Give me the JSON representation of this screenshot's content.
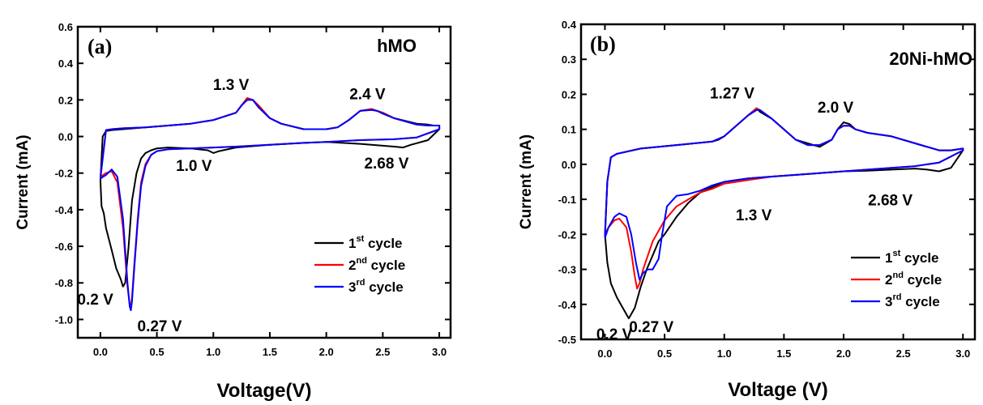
{
  "chart_data": [
    {
      "type": "line",
      "panel_label": "(a)",
      "title": "hMO",
      "xlabel": "Voltage(V)",
      "ylabel": "Current (mA)",
      "xlim": [
        -0.2,
        3.1
      ],
      "ylim": [
        -1.1,
        0.6
      ],
      "xticks": [
        "0.0",
        "0.5",
        "1.0",
        "1.5",
        "2.0",
        "2.5",
        "3.0"
      ],
      "yticks": [
        "-1.0",
        "-0.8",
        "-0.6",
        "-0.4",
        "-0.2",
        "0.0",
        "0.2",
        "0.4",
        "0.6"
      ],
      "legend_position": "bottom-right",
      "annotations": [
        {
          "text": "1.3 V",
          "x": 1.3,
          "y": 0.21
        },
        {
          "text": "2.4 V",
          "x": 2.4,
          "y": 0.15
        },
        {
          "text": "1.0 V",
          "x": 1.0,
          "y": -0.09
        },
        {
          "text": "2.68 V",
          "x": 2.68,
          "y": -0.06
        },
        {
          "text": "0.2 V",
          "x": 0.2,
          "y": -0.82
        },
        {
          "text": "0.27 V",
          "x": 0.27,
          "y": -0.95
        }
      ],
      "series": [
        {
          "label_base": "1",
          "label_sup": "st",
          "label_rest": " cycle",
          "color": "#000000",
          "x": [
            0.0,
            0.01,
            0.03,
            0.05,
            0.1,
            0.14,
            0.18,
            0.2,
            0.22,
            0.25,
            0.28,
            0.32,
            0.36,
            0.4,
            0.45,
            0.5,
            0.6,
            0.8,
            0.95,
            1.0,
            1.05,
            1.2,
            1.5,
            1.8,
            2.0,
            2.3,
            2.6,
            2.68,
            2.75,
            2.9,
            3.0,
            3.0,
            2.95,
            2.9,
            2.8,
            2.6,
            2.5,
            2.4,
            2.3,
            2.2,
            2.1,
            2.0,
            1.8,
            1.6,
            1.5,
            1.4,
            1.35,
            1.3,
            1.25,
            1.2,
            1.1,
            1.0,
            0.8,
            0.6,
            0.4,
            0.2,
            0.1,
            0.05,
            0.02,
            0.0
          ],
          "y": [
            -0.24,
            -0.38,
            -0.42,
            -0.5,
            -0.62,
            -0.72,
            -0.78,
            -0.82,
            -0.8,
            -0.6,
            -0.35,
            -0.2,
            -0.12,
            -0.09,
            -0.075,
            -0.065,
            -0.06,
            -0.065,
            -0.075,
            -0.09,
            -0.08,
            -0.06,
            -0.045,
            -0.035,
            -0.03,
            -0.04,
            -0.055,
            -0.06,
            -0.045,
            -0.02,
            0.04,
            0.06,
            0.06,
            0.065,
            0.07,
            0.1,
            0.13,
            0.15,
            0.14,
            0.09,
            0.05,
            0.04,
            0.04,
            0.07,
            0.1,
            0.16,
            0.2,
            0.21,
            0.17,
            0.13,
            0.11,
            0.09,
            0.07,
            0.06,
            0.05,
            0.04,
            0.035,
            0.03,
            0.0,
            -0.24
          ]
        },
        {
          "label_base": "2",
          "label_sup": "nd",
          "label_rest": " cycle",
          "color": "#ff0000",
          "x": [
            0.0,
            0.05,
            0.1,
            0.15,
            0.2,
            0.24,
            0.26,
            0.27,
            0.28,
            0.3,
            0.33,
            0.36,
            0.4,
            0.45,
            0.5,
            0.6,
            0.8,
            1.0,
            1.2,
            1.5,
            1.8,
            2.0,
            2.3,
            2.6,
            2.8,
            3.0,
            3.0,
            2.9,
            2.8,
            2.6,
            2.5,
            2.45,
            2.4,
            2.3,
            2.2,
            2.1,
            2.0,
            1.8,
            1.6,
            1.5,
            1.4,
            1.35,
            1.3,
            1.25,
            1.2,
            1.1,
            1.0,
            0.8,
            0.6,
            0.4,
            0.2,
            0.1,
            0.05,
            0.0
          ],
          "y": [
            -0.22,
            -0.2,
            -0.19,
            -0.25,
            -0.5,
            -0.82,
            -0.92,
            -0.93,
            -0.88,
            -0.7,
            -0.45,
            -0.25,
            -0.15,
            -0.1,
            -0.08,
            -0.07,
            -0.065,
            -0.06,
            -0.055,
            -0.045,
            -0.035,
            -0.03,
            -0.02,
            -0.015,
            -0.005,
            0.04,
            0.06,
            0.06,
            0.065,
            0.1,
            0.13,
            0.14,
            0.15,
            0.14,
            0.09,
            0.05,
            0.04,
            0.04,
            0.07,
            0.1,
            0.17,
            0.2,
            0.21,
            0.17,
            0.13,
            0.11,
            0.09,
            0.07,
            0.06,
            0.05,
            0.045,
            0.04,
            0.035,
            -0.22
          ]
        },
        {
          "label_base": "3",
          "label_sup": "rd",
          "label_rest": " cycle",
          "color": "#0000ff",
          "x": [
            0.0,
            0.05,
            0.1,
            0.15,
            0.2,
            0.24,
            0.26,
            0.27,
            0.28,
            0.3,
            0.33,
            0.36,
            0.4,
            0.45,
            0.5,
            0.6,
            0.8,
            1.0,
            1.2,
            1.5,
            1.8,
            2.0,
            2.3,
            2.6,
            2.8,
            3.0,
            3.0,
            2.9,
            2.8,
            2.6,
            2.5,
            2.45,
            2.4,
            2.3,
            2.2,
            2.1,
            2.0,
            1.8,
            1.6,
            1.5,
            1.4,
            1.35,
            1.3,
            1.25,
            1.2,
            1.1,
            1.0,
            0.8,
            0.6,
            0.4,
            0.2,
            0.1,
            0.05,
            0.0
          ],
          "y": [
            -0.23,
            -0.21,
            -0.18,
            -0.22,
            -0.45,
            -0.8,
            -0.93,
            -0.95,
            -0.9,
            -0.72,
            -0.47,
            -0.27,
            -0.16,
            -0.1,
            -0.08,
            -0.07,
            -0.065,
            -0.06,
            -0.055,
            -0.045,
            -0.035,
            -0.03,
            -0.02,
            -0.015,
            -0.005,
            0.04,
            0.06,
            0.06,
            0.065,
            0.1,
            0.125,
            0.14,
            0.145,
            0.14,
            0.09,
            0.05,
            0.04,
            0.04,
            0.07,
            0.1,
            0.16,
            0.2,
            0.2,
            0.17,
            0.13,
            0.11,
            0.09,
            0.07,
            0.06,
            0.05,
            0.045,
            0.04,
            0.035,
            -0.23
          ]
        }
      ]
    },
    {
      "type": "line",
      "panel_label": "(b)",
      "title": "20Ni-hMO",
      "xlabel": "Voltage (V)",
      "ylabel": "Current (mA)",
      "xlim": [
        -0.2,
        3.1
      ],
      "ylim": [
        -0.5,
        0.4
      ],
      "xticks": [
        "0.0",
        "0.5",
        "1.0",
        "1.5",
        "2.0",
        "2.5",
        "3.0"
      ],
      "yticks": [
        "-0.5",
        "-0.4",
        "-0.3",
        "-0.2",
        "-0.1",
        "0.0",
        "0.1",
        "0.2",
        "0.3",
        "0.4"
      ],
      "legend_position": "bottom-right",
      "annotations": [
        {
          "text": "1.27 V",
          "x": 1.27,
          "y": 0.16
        },
        {
          "text": "2.0 V",
          "x": 2.0,
          "y": 0.12
        },
        {
          "text": "1.3 V",
          "x": 1.3,
          "y": -0.04
        },
        {
          "text": "2.68 V",
          "x": 2.68,
          "y": -0.015
        },
        {
          "text": "0.27 V",
          "x": 0.27,
          "y": -0.35
        },
        {
          "text": "0.2 V",
          "x": 0.2,
          "y": -0.44
        }
      ],
      "series": [
        {
          "label_base": "1",
          "label_sup": "st",
          "label_rest": " cycle",
          "color": "#000000",
          "x": [
            0.0,
            0.02,
            0.05,
            0.1,
            0.15,
            0.2,
            0.25,
            0.3,
            0.35,
            0.4,
            0.45,
            0.5,
            0.6,
            0.7,
            0.8,
            0.9,
            1.0,
            1.2,
            1.4,
            1.6,
            1.8,
            2.0,
            2.2,
            2.4,
            2.6,
            2.7,
            2.8,
            2.9,
            3.0,
            3.0,
            2.9,
            2.8,
            2.6,
            2.4,
            2.2,
            2.1,
            2.05,
            2.0,
            1.95,
            1.9,
            1.8,
            1.7,
            1.6,
            1.5,
            1.4,
            1.3,
            1.27,
            1.2,
            1.1,
            1.0,
            0.95,
            0.9,
            0.6,
            0.3,
            0.1,
            0.05,
            0.02,
            0.0
          ],
          "y": [
            -0.2,
            -0.28,
            -0.34,
            -0.38,
            -0.41,
            -0.44,
            -0.41,
            -0.35,
            -0.3,
            -0.26,
            -0.22,
            -0.2,
            -0.15,
            -0.11,
            -0.08,
            -0.065,
            -0.05,
            -0.04,
            -0.035,
            -0.03,
            -0.025,
            -0.02,
            -0.018,
            -0.015,
            -0.012,
            -0.015,
            -0.02,
            -0.01,
            0.04,
            0.045,
            0.04,
            0.04,
            0.06,
            0.08,
            0.09,
            0.1,
            0.115,
            0.12,
            0.1,
            0.07,
            0.05,
            0.06,
            0.07,
            0.1,
            0.13,
            0.15,
            0.16,
            0.14,
            0.11,
            0.08,
            0.07,
            0.065,
            0.055,
            0.045,
            0.03,
            0.02,
            -0.05,
            -0.2
          ]
        },
        {
          "label_base": "2",
          "label_sup": "nd",
          "label_rest": " cycle",
          "color": "#ff0000",
          "x": [
            0.0,
            0.03,
            0.08,
            0.12,
            0.18,
            0.22,
            0.25,
            0.27,
            0.29,
            0.32,
            0.35,
            0.4,
            0.45,
            0.5,
            0.6,
            0.7,
            0.8,
            0.9,
            1.0,
            1.2,
            1.4,
            1.6,
            1.8,
            2.0,
            2.2,
            2.4,
            2.6,
            2.8,
            3.0,
            3.0,
            2.9,
            2.8,
            2.6,
            2.4,
            2.2,
            2.1,
            2.05,
            2.0,
            1.95,
            1.9,
            1.8,
            1.7,
            1.6,
            1.5,
            1.4,
            1.3,
            1.27,
            1.2,
            1.1,
            1.0,
            0.9,
            0.6,
            0.3,
            0.1,
            0.05,
            0.02,
            0.0
          ],
          "y": [
            -0.2,
            -0.18,
            -0.16,
            -0.155,
            -0.18,
            -0.25,
            -0.32,
            -0.355,
            -0.34,
            -0.3,
            -0.27,
            -0.22,
            -0.19,
            -0.16,
            -0.12,
            -0.1,
            -0.08,
            -0.07,
            -0.055,
            -0.045,
            -0.035,
            -0.03,
            -0.025,
            -0.02,
            -0.015,
            -0.01,
            -0.005,
            0.005,
            0.04,
            0.045,
            0.04,
            0.04,
            0.06,
            0.08,
            0.09,
            0.1,
            0.11,
            0.11,
            0.1,
            0.07,
            0.055,
            0.055,
            0.07,
            0.1,
            0.13,
            0.155,
            0.16,
            0.14,
            0.11,
            0.08,
            0.065,
            0.055,
            0.045,
            0.03,
            0.02,
            -0.05,
            -0.2
          ]
        },
        {
          "label_base": "3",
          "label_sup": "rd",
          "label_rest": " cycle",
          "color": "#0000ff",
          "x": [
            0.0,
            0.03,
            0.08,
            0.12,
            0.18,
            0.22,
            0.26,
            0.29,
            0.32,
            0.36,
            0.4,
            0.45,
            0.48,
            0.52,
            0.6,
            0.7,
            0.8,
            0.9,
            1.0,
            1.2,
            1.4,
            1.6,
            1.8,
            2.0,
            2.2,
            2.4,
            2.6,
            2.8,
            3.0,
            3.0,
            2.9,
            2.8,
            2.6,
            2.4,
            2.2,
            2.1,
            2.05,
            2.0,
            1.95,
            1.9,
            1.8,
            1.7,
            1.6,
            1.5,
            1.4,
            1.3,
            1.27,
            1.2,
            1.1,
            1.0,
            0.9,
            0.6,
            0.3,
            0.1,
            0.05,
            0.02,
            0.0
          ],
          "y": [
            -0.21,
            -0.18,
            -0.15,
            -0.14,
            -0.15,
            -0.2,
            -0.28,
            -0.33,
            -0.31,
            -0.3,
            -0.3,
            -0.27,
            -0.2,
            -0.12,
            -0.09,
            -0.085,
            -0.075,
            -0.06,
            -0.05,
            -0.04,
            -0.035,
            -0.03,
            -0.025,
            -0.02,
            -0.015,
            -0.01,
            -0.005,
            0.005,
            0.04,
            0.045,
            0.04,
            0.04,
            0.06,
            0.08,
            0.09,
            0.1,
            0.11,
            0.11,
            0.1,
            0.07,
            0.055,
            0.055,
            0.07,
            0.1,
            0.13,
            0.155,
            0.155,
            0.14,
            0.11,
            0.08,
            0.065,
            0.055,
            0.045,
            0.03,
            0.02,
            -0.05,
            -0.21
          ]
        }
      ]
    }
  ]
}
